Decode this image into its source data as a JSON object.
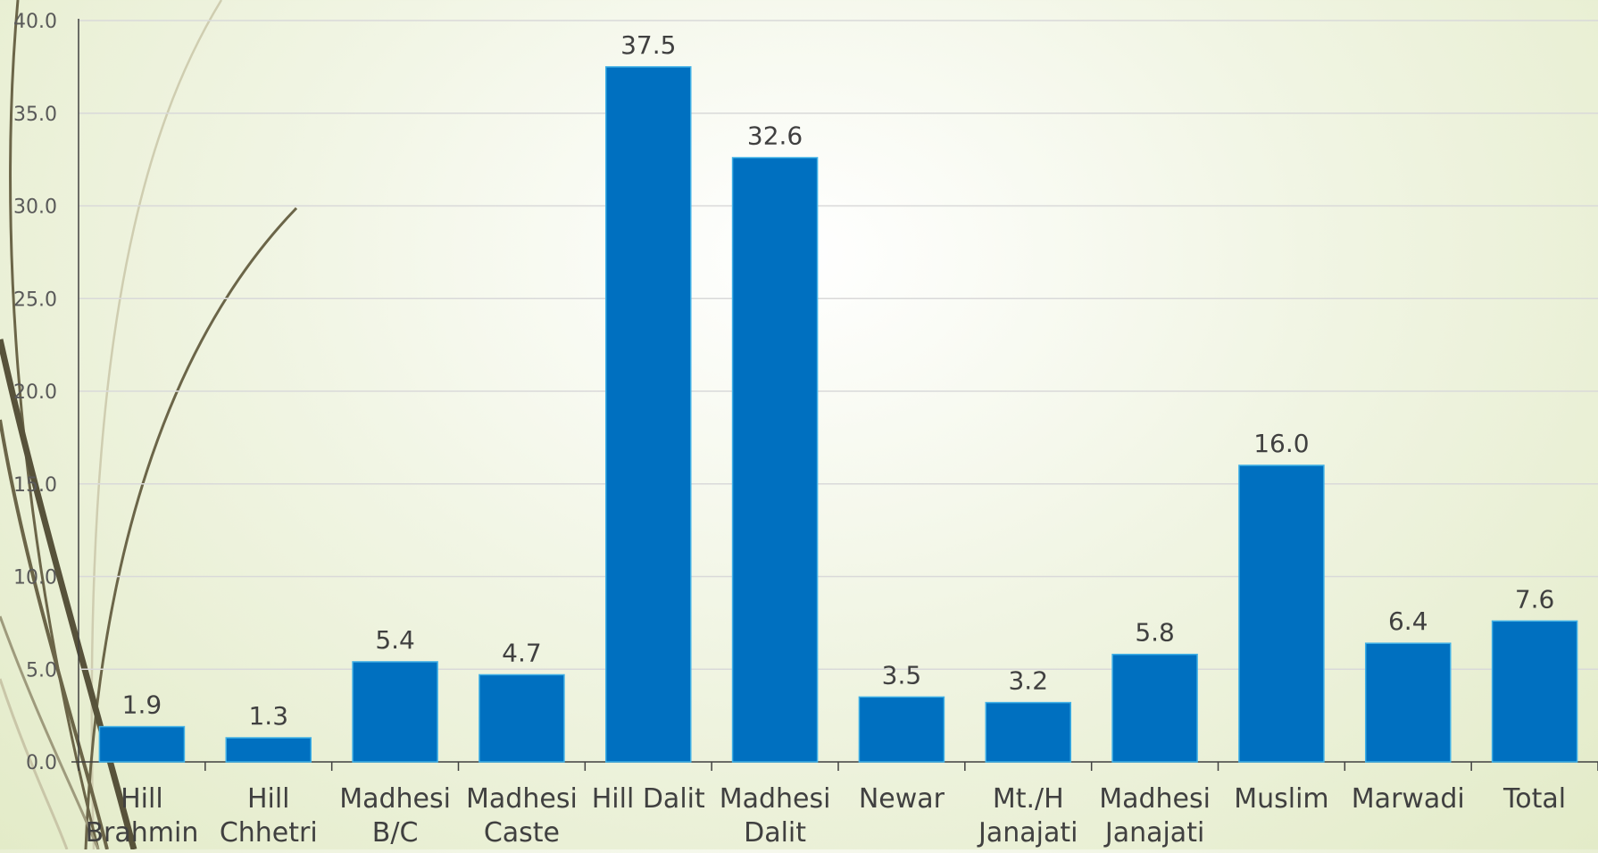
{
  "chart_data": {
    "type": "bar",
    "title": "",
    "xlabel": "",
    "ylabel": "",
    "categories": [
      [
        "Hill",
        "Brahmin"
      ],
      [
        "Hill",
        "Chhetri"
      ],
      [
        "Madhesi",
        "B/C"
      ],
      [
        "Madhesi",
        "Caste"
      ],
      [
        "Hill Dalit"
      ],
      [
        "Madhesi",
        "Dalit"
      ],
      [
        "Newar"
      ],
      [
        "Mt./H",
        "Janajati"
      ],
      [
        "Madhesi",
        "Janajati"
      ],
      [
        "Muslim"
      ],
      [
        "Marwadi"
      ],
      [
        "Total"
      ]
    ],
    "values": [
      1.9,
      1.3,
      5.4,
      4.7,
      37.5,
      32.6,
      3.5,
      3.2,
      5.8,
      16.0,
      6.4,
      7.6
    ],
    "value_labels": [
      "1.9",
      "1.3",
      "5.4",
      "4.7",
      "37.5",
      "32.6",
      "3.5",
      "3.2",
      "5.8",
      "16.0",
      "6.4",
      "7.6"
    ],
    "ylim": [
      0,
      40
    ],
    "yticks": [
      "0.0",
      "5.0",
      "10.0",
      "15.0",
      "20.0",
      "25.0",
      "30.0",
      "35.0",
      "40.0"
    ],
    "grid": true,
    "legend": "none",
    "colors": {
      "bar": "#0070c0",
      "bar_edge": "#3fb0e6",
      "grid": "#d9d9d9",
      "axis": "#404040",
      "decor_curve": "#6b6548",
      "decor_curve_light": "#c9c6a8"
    }
  }
}
